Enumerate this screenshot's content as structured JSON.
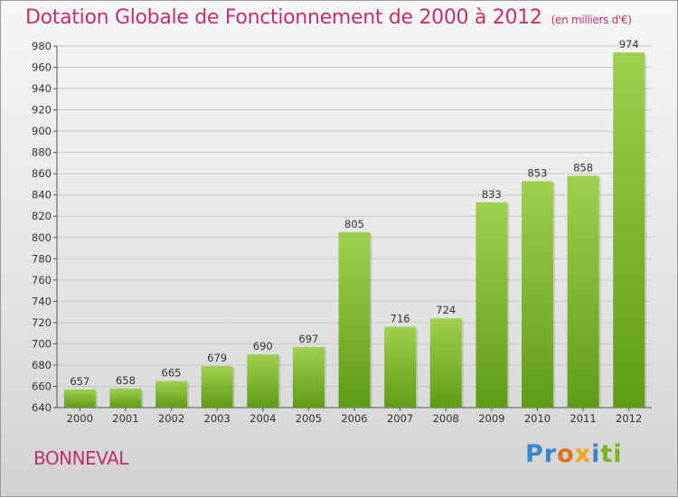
{
  "header": {
    "title": "Dotation Globale de Fonctionnement de 2000 à 2012",
    "subtitle": "(en milliers d'€)"
  },
  "footer": {
    "commune": "BONNEVAL",
    "logo_parts": [
      "Pr",
      "o",
      "x",
      "i",
      "ti"
    ]
  },
  "chart_data": {
    "type": "bar",
    "title": "Dotation Globale de Fonctionnement de 2000 à 2012",
    "subtitle": "(en milliers d'€)",
    "categories": [
      "2000",
      "2001",
      "2002",
      "2003",
      "2004",
      "2005",
      "2006",
      "2007",
      "2008",
      "2009",
      "2010",
      "2011",
      "2012"
    ],
    "values": [
      657,
      658,
      665,
      679,
      690,
      697,
      805,
      716,
      724,
      833,
      853,
      858,
      974
    ],
    "ylim": [
      640,
      980
    ],
    "ytick_step": 20,
    "grid": true,
    "bar_color_top": "#9fd04d",
    "bar_color_bottom": "#5f9c14"
  }
}
